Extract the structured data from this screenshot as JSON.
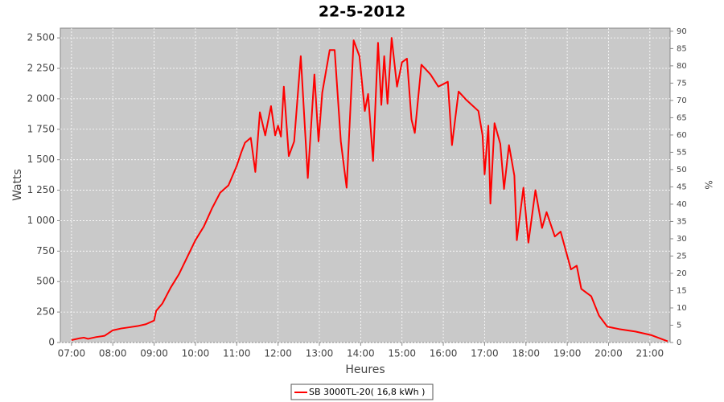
{
  "chart_data": {
    "type": "line",
    "title": "22-5-2012",
    "x_label": "Heures",
    "y_label": "Watts",
    "y2_label": "%",
    "x": [
      7.0,
      7.2,
      7.3,
      7.4,
      7.6,
      7.8,
      8.0,
      8.2,
      8.4,
      8.6,
      8.8,
      9.0,
      9.05,
      9.2,
      9.4,
      9.6,
      9.8,
      10.0,
      10.2,
      10.4,
      10.6,
      10.8,
      11.0,
      11.11,
      11.2,
      11.34,
      11.45,
      11.56,
      11.69,
      11.83,
      11.93,
      12.0,
      12.07,
      12.14,
      12.26,
      12.39,
      12.55,
      12.72,
      12.88,
      12.98,
      13.07,
      13.25,
      13.37,
      13.52,
      13.66,
      13.83,
      13.97,
      14.1,
      14.18,
      14.3,
      14.42,
      14.5,
      14.57,
      14.65,
      14.75,
      14.88,
      15.0,
      15.12,
      15.23,
      15.31,
      15.47,
      15.69,
      15.88,
      16.11,
      16.21,
      16.37,
      16.56,
      16.85,
      16.95,
      17.0,
      17.09,
      17.14,
      17.24,
      17.38,
      17.47,
      17.59,
      17.72,
      17.78,
      17.94,
      18.06,
      18.23,
      18.39,
      18.5,
      18.7,
      18.84,
      19.09,
      19.23,
      19.34,
      19.58,
      19.77,
      19.97,
      20.26,
      20.65,
      21.04,
      21.43
    ],
    "series": [
      {
        "name": "SB 3000TL-20( 16,8 kWh )",
        "color": "#ff0000",
        "values": [
          20,
          35,
          40,
          30,
          45,
          55,
          100,
          115,
          125,
          135,
          150,
          180,
          260,
          320,
          450,
          560,
          700,
          840,
          950,
          1100,
          1230,
          1290,
          1450,
          1560,
          1640,
          1680,
          1400,
          1890,
          1700,
          1940,
          1700,
          1780,
          1690,
          2100,
          1530,
          1650,
          2350,
          1350,
          2200,
          1650,
          2050,
          2400,
          2400,
          1650,
          1270,
          2480,
          2350,
          1900,
          2040,
          1490,
          2460,
          1950,
          2350,
          1960,
          2500,
          2100,
          2300,
          2330,
          1830,
          1720,
          2280,
          2200,
          2100,
          2140,
          1620,
          2060,
          1990,
          1900,
          1700,
          1380,
          1780,
          1140,
          1800,
          1630,
          1260,
          1620,
          1370,
          840,
          1270,
          820,
          1250,
          940,
          1070,
          870,
          910,
          600,
          630,
          440,
          380,
          220,
          130,
          110,
          90,
          60,
          10
        ]
      }
    ],
    "xlim": [
      6.73,
      21.49
    ],
    "xticks": [
      {
        "value": 7,
        "label": "07:00"
      },
      {
        "value": 8,
        "label": "08:00"
      },
      {
        "value": 9,
        "label": "09:00"
      },
      {
        "value": 10,
        "label": "10:00"
      },
      {
        "value": 11,
        "label": "11:00"
      },
      {
        "value": 12,
        "label": "12:00"
      },
      {
        "value": 13,
        "label": "13:00"
      },
      {
        "value": 14,
        "label": "14:00"
      },
      {
        "value": 15,
        "label": "15:00"
      },
      {
        "value": 16,
        "label": "16:00"
      },
      {
        "value": 17,
        "label": "17:00"
      },
      {
        "value": 18,
        "label": "18:00"
      },
      {
        "value": 19,
        "label": "19:00"
      },
      {
        "value": 20,
        "label": "20:00"
      },
      {
        "value": 21,
        "label": "21:00"
      }
    ],
    "ylim": [
      0,
      2580
    ],
    "yticks": [
      0,
      250,
      500,
      750,
      {
        "value": 1000,
        "label": "1 000"
      },
      {
        "value": 1250,
        "label": "1 250"
      },
      {
        "value": 1500,
        "label": "1 500"
      },
      {
        "value": 1750,
        "label": "1 750"
      },
      {
        "value": 2000,
        "label": "2 000"
      },
      {
        "value": 2250,
        "label": "2 250"
      },
      {
        "value": 2500,
        "label": "2 500"
      }
    ],
    "y2lim": [
      0,
      90.9
    ],
    "y2ticks": [
      0,
      5,
      10,
      15,
      20,
      25,
      30,
      35,
      40,
      45,
      50,
      55,
      60,
      65,
      70,
      75,
      80,
      85,
      90
    ],
    "grid": true
  }
}
